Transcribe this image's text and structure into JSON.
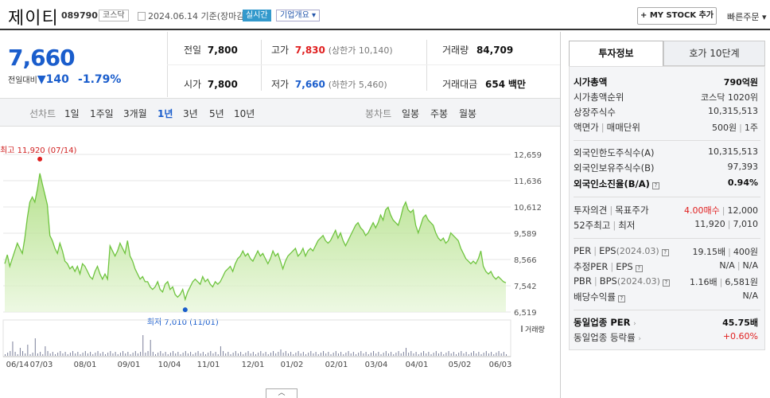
{
  "header": {
    "name": "제이티",
    "code": "089790",
    "market": "코스닥",
    "date": "2024.06.14 기준(장마감)",
    "realtime": "실시간",
    "corp_overview": "기업개요 ▾",
    "mystock": "+ MY STOCK 추가",
    "quick_order": "빠른주문 ▾"
  },
  "price": {
    "current": "7,660",
    "change_label": "전일대비",
    "change_arrow": "▼",
    "change": "140",
    "change_pct": "-1.79%"
  },
  "summary": {
    "prev_label": "전일",
    "prev": "7,800",
    "high_label": "고가",
    "high": "7,830",
    "high_limit": "(상한가 10,140)",
    "volume_label": "거래량",
    "volume": "84,709",
    "open_label": "시가",
    "open": "7,800",
    "low_label": "저가",
    "low": "7,660",
    "low_limit": "(하한가 5,460)",
    "amount_label": "거래대금",
    "amount": "654",
    "amount_unit": "백만"
  },
  "chart_tabs": {
    "line_label": "선차트",
    "periods": [
      "1일",
      "1주일",
      "3개월",
      "1년",
      "3년",
      "5년",
      "10년"
    ],
    "selected": "1년",
    "candle_label": "봉차트",
    "candle_periods": [
      "일봉",
      "주봉",
      "월봉"
    ]
  },
  "chart_data": {
    "type": "area",
    "y_ticks": [
      "12,659",
      "11,636",
      "10,612",
      "9,589",
      "8,566",
      "7,542",
      "6,519"
    ],
    "ylim": [
      6519,
      12659
    ],
    "x_ticks": [
      "06/14",
      "07/03",
      "08/01",
      "09/01",
      "10/04",
      "11/01",
      "12/01",
      "01/02",
      "02/01",
      "03/04",
      "04/01",
      "05/02",
      "06/03"
    ],
    "high_annotation": "최고 11,920 (07/14)",
    "low_annotation": "최저 7,010 (11/01)",
    "volume_label": "거래량",
    "prices": [
      8400,
      8750,
      8300,
      8600,
      8900,
      9200,
      9000,
      8800,
      9400,
      10200,
      10800,
      11000,
      10800,
      11300,
      11920,
      11500,
      11100,
      10700,
      9500,
      9300,
      9000,
      8800,
      9200,
      8900,
      8500,
      8400,
      8200,
      8300,
      8100,
      8300,
      8000,
      8400,
      8300,
      8100,
      7900,
      7800,
      8100,
      8300,
      8000,
      7800,
      8000,
      7800,
      9100,
      8900,
      8700,
      8900,
      9200,
      9000,
      8800,
      9300,
      8700,
      8500,
      8200,
      8000,
      7800,
      7900,
      7700,
      7700,
      7500,
      7400,
      7500,
      7700,
      7400,
      7300,
      7600,
      7700,
      7400,
      7500,
      7200,
      7100,
      7200,
      7400,
      7010,
      7300,
      7500,
      7700,
      7800,
      7700,
      7600,
      7900,
      7700,
      7800,
      7600,
      7500,
      7700,
      7600,
      7700,
      7900,
      8100,
      8200,
      8300,
      8100,
      8400,
      8600,
      8700,
      8900,
      8700,
      8800,
      8600,
      8500,
      8700,
      8900,
      8700,
      8800,
      8600,
      8400,
      8600,
      8900,
      8700,
      8800,
      8500,
      8200,
      8500,
      8700,
      8800,
      8900,
      9000,
      8700,
      8800,
      9000,
      8700,
      8900,
      9000,
      8900,
      9100,
      9300,
      9400,
      9500,
      9300,
      9200,
      9300,
      9500,
      9700,
      9400,
      9600,
      9300,
      9100,
      9300,
      9500,
      9700,
      9900,
      10000,
      9800,
      9700,
      9500,
      9600,
      9800,
      10000,
      9800,
      10000,
      10300,
      10100,
      10500,
      10600,
      10300,
      10100,
      10000,
      9900,
      10200,
      10600,
      10800,
      10500,
      10400,
      10500,
      9900,
      9600,
      9900,
      10200,
      10300,
      10100,
      10000,
      9900,
      9600,
      9400,
      9300,
      9400,
      9200,
      9300,
      9600,
      9500,
      9400,
      9300,
      9000,
      8800,
      8600,
      8500,
      8400,
      8500,
      8400,
      8600,
      8900,
      8300,
      8100,
      8000,
      8100,
      7900,
      7800,
      7900,
      7800,
      7700,
      7660
    ]
  },
  "tabs_right": [
    "투자정보",
    "호가 10단계"
  ],
  "info": {
    "market_cap_label": "시가총액",
    "market_cap": "790억원",
    "rank_label": "시가총액순위",
    "rank": "코스닥 1020위",
    "shares_label": "상장주식수",
    "shares": "10,315,513",
    "facevalue_label": "액면가",
    "tradeunit_label": "매매단위",
    "facevalue": "500원",
    "tradeunit": "1주",
    "foreign_limit_label": "외국인한도주식수(A)",
    "foreign_limit": "10,315,513",
    "foreign_hold_label": "외국인보유주식수(B)",
    "foreign_hold": "97,393",
    "foreign_ratio_label": "외국인소진율(B/A)",
    "foreign_ratio": "0.94%",
    "opinion_label": "투자의견",
    "target_label": "목표주가",
    "opinion": "4.00매수",
    "target": "12,000",
    "w52_label": "52주최고",
    "w52_low_label": "최저",
    "w52_high": "11,920",
    "w52_low": "7,010",
    "per_label": "PER",
    "eps_label": "EPS",
    "eps_year": "(2024.03)",
    "per": "19.15배",
    "eps": "400원",
    "est_per_label": "추정PER",
    "est_eps_label": "EPS",
    "est_per": "N/A",
    "est_eps": "N/A",
    "pbr_label": "PBR",
    "bps_label": "BPS",
    "bps_year": "(2024.03)",
    "pbr": "1.16배",
    "bps": "6,581원",
    "div_label": "배당수익률",
    "div": "N/A",
    "sector_per_label": "동일업종 PER",
    "sector_per": "45.75배",
    "sector_rate_label": "동일업종 등락률",
    "sector_rate": "+0.60%"
  }
}
